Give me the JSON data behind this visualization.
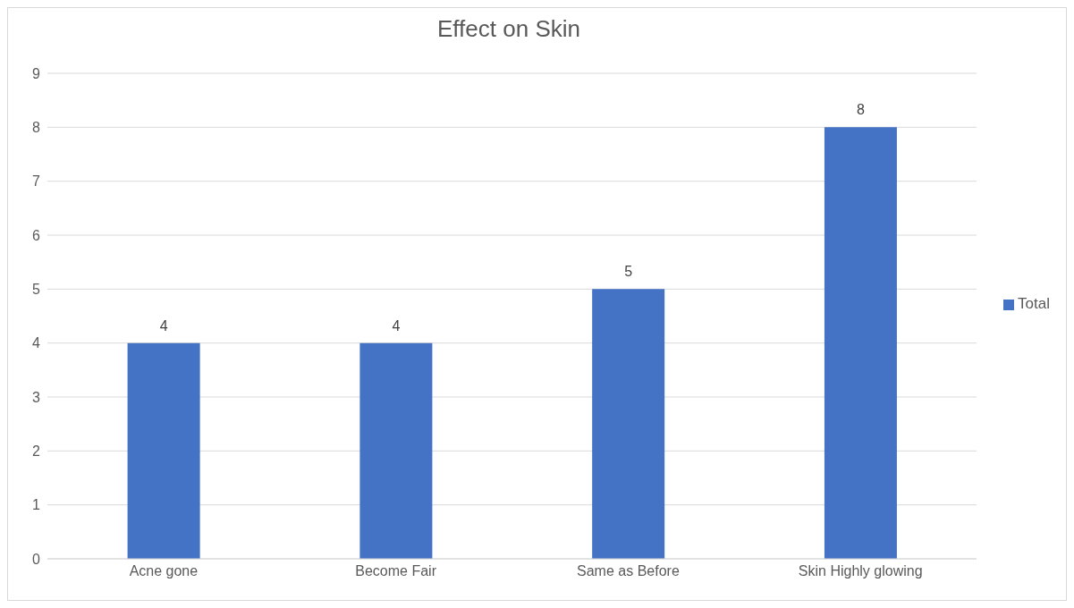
{
  "chart_data": {
    "type": "bar",
    "title": "Effect on Skin",
    "categories": [
      "Acne gone",
      "Become Fair",
      "Same as Before",
      "Skin Highly glowing"
    ],
    "series": [
      {
        "name": "Total",
        "color": "#4472c4",
        "values": [
          4,
          4,
          5,
          8
        ]
      }
    ],
    "ylim": [
      0,
      9
    ],
    "yticks": [
      0,
      1,
      2,
      3,
      4,
      5,
      6,
      7,
      8,
      9
    ],
    "grid": "y",
    "legend": "right",
    "data_labels": true
  }
}
